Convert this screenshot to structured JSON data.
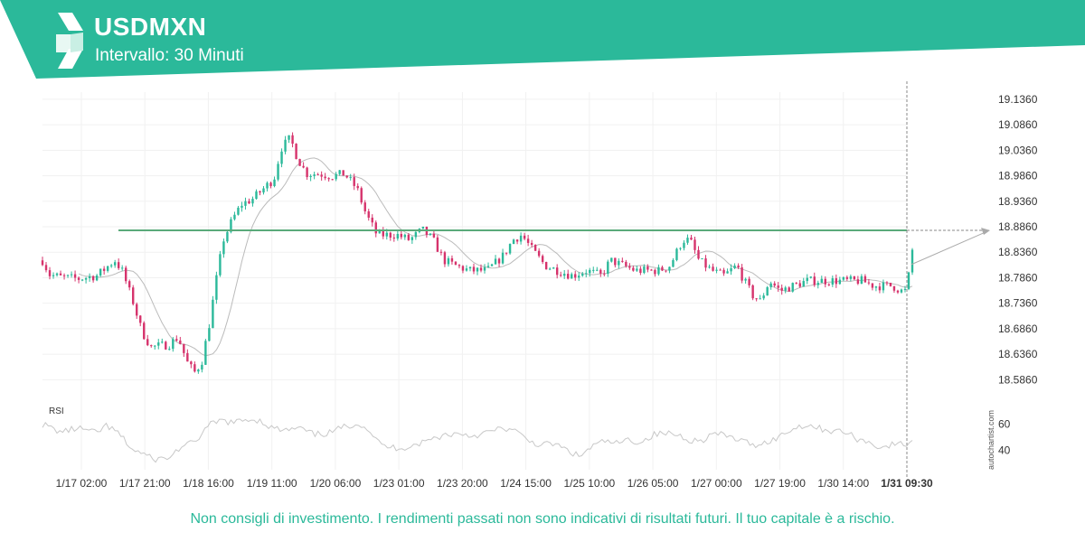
{
  "header": {
    "symbol": "USDMXN",
    "interval": "Intervallo: 30 Minuti",
    "color": "#2bb99a"
  },
  "footer": {
    "disclaimer": "Non consigli di investimento. I rendimenti passati non sono indicativi di risultati futuri. Il tuo capitale è a rischio."
  },
  "brand": "autochartist.com",
  "chart_data": {
    "type": "candlestick",
    "title": "USDMXN",
    "interval": "Intervallo: 30 Minuti",
    "y_ticks": [
      "19.1360",
      "19.0860",
      "19.0360",
      "18.9860",
      "18.9360",
      "18.8860",
      "18.8360",
      "18.7860",
      "18.7360",
      "18.6860",
      "18.6360",
      "18.5860"
    ],
    "ylim": [
      18.56,
      19.15
    ],
    "x_ticks": [
      "1/17 02:00",
      "1/17 21:00",
      "1/18 16:00",
      "1/19 11:00",
      "1/20 06:00",
      "1/23 01:00",
      "1/23 20:00",
      "1/24 15:00",
      "1/25 10:00",
      "1/26 05:00",
      "1/27 00:00",
      "1/27 19:00",
      "1/30 14:00",
      "1/31 09:30"
    ],
    "highlighted_x": "1/31 09:30",
    "resistance_level": 18.879,
    "colors": {
      "up": "#2bb99a",
      "down": "#d6336c",
      "resistance": "#5aaa7a",
      "ma": "#bbbbbb",
      "rsi": "#c8c8c8"
    },
    "price_path": [
      [
        0,
        18.82
      ],
      [
        8,
        18.792
      ],
      [
        20,
        18.787
      ],
      [
        40,
        18.784
      ],
      [
        60,
        18.79
      ],
      [
        80,
        18.82
      ],
      [
        88,
        18.8
      ],
      [
        100,
        18.74
      ],
      [
        110,
        18.68
      ],
      [
        120,
        18.65
      ],
      [
        140,
        18.655
      ],
      [
        150,
        18.67
      ],
      [
        160,
        18.62
      ],
      [
        168,
        18.6
      ],
      [
        176,
        18.62
      ],
      [
        184,
        18.69
      ],
      [
        192,
        18.78
      ],
      [
        200,
        18.86
      ],
      [
        210,
        18.9
      ],
      [
        220,
        18.93
      ],
      [
        232,
        18.94
      ],
      [
        244,
        18.96
      ],
      [
        256,
        18.98
      ],
      [
        264,
        19.04
      ],
      [
        274,
        19.06
      ],
      [
        282,
        19.02
      ],
      [
        292,
        18.99
      ],
      [
        306,
        18.99
      ],
      [
        320,
        18.985
      ],
      [
        334,
        18.99
      ],
      [
        348,
        18.96
      ],
      [
        358,
        18.91
      ],
      [
        370,
        18.87
      ],
      [
        380,
        18.87
      ],
      [
        392,
        18.87
      ],
      [
        406,
        18.86
      ],
      [
        420,
        18.88
      ],
      [
        432,
        18.86
      ],
      [
        444,
        18.82
      ],
      [
        456,
        18.81
      ],
      [
        472,
        18.8
      ],
      [
        492,
        18.8
      ],
      [
        510,
        18.83
      ],
      [
        520,
        18.86
      ],
      [
        530,
        18.87
      ],
      [
        542,
        18.84
      ],
      [
        556,
        18.81
      ],
      [
        570,
        18.8
      ],
      [
        586,
        18.79
      ],
      [
        602,
        18.8
      ],
      [
        618,
        18.79
      ],
      [
        628,
        18.82
      ],
      [
        642,
        18.81
      ],
      [
        656,
        18.8
      ],
      [
        670,
        18.8
      ],
      [
        682,
        18.8
      ],
      [
        694,
        18.81
      ],
      [
        708,
        18.86
      ],
      [
        716,
        18.86
      ],
      [
        726,
        18.82
      ],
      [
        740,
        18.8
      ],
      [
        754,
        18.79
      ],
      [
        768,
        18.81
      ],
      [
        776,
        18.78
      ],
      [
        786,
        18.75
      ],
      [
        794,
        18.74
      ],
      [
        804,
        18.78
      ],
      [
        816,
        18.76
      ],
      [
        830,
        18.77
      ],
      [
        846,
        18.78
      ],
      [
        860,
        18.78
      ],
      [
        878,
        18.78
      ],
      [
        892,
        18.78
      ],
      [
        906,
        18.78
      ],
      [
        920,
        18.77
      ],
      [
        940,
        18.77
      ],
      [
        950,
        18.76
      ],
      [
        956,
        18.76
      ],
      [
        960,
        18.82
      ],
      [
        962,
        18.84
      ]
    ],
    "rsi": {
      "label": "RSI",
      "ticks": [
        "60",
        "40"
      ],
      "ylim": [
        25,
        75
      ],
      "path": [
        [
          0,
          60
        ],
        [
          20,
          54
        ],
        [
          40,
          57
        ],
        [
          60,
          53
        ],
        [
          70,
          59
        ],
        [
          84,
          53
        ],
        [
          100,
          40
        ],
        [
          110,
          38
        ],
        [
          122,
          33
        ],
        [
          140,
          34
        ],
        [
          152,
          42
        ],
        [
          168,
          46
        ],
        [
          184,
          59
        ],
        [
          198,
          63
        ],
        [
          212,
          61
        ],
        [
          228,
          64
        ],
        [
          240,
          63
        ],
        [
          254,
          57
        ],
        [
          268,
          55
        ],
        [
          284,
          57
        ],
        [
          300,
          52
        ],
        [
          316,
          53
        ],
        [
          334,
          58
        ],
        [
          350,
          61
        ],
        [
          362,
          55
        ],
        [
          374,
          44
        ],
        [
          386,
          42
        ],
        [
          400,
          42
        ],
        [
          416,
          45
        ],
        [
          432,
          49
        ],
        [
          446,
          52
        ],
        [
          462,
          53
        ],
        [
          476,
          51
        ],
        [
          494,
          54
        ],
        [
          510,
          57
        ],
        [
          522,
          55
        ],
        [
          536,
          48
        ],
        [
          550,
          44
        ],
        [
          566,
          45
        ],
        [
          580,
          40
        ],
        [
          594,
          35
        ],
        [
          608,
          43
        ],
        [
          622,
          47
        ],
        [
          636,
          45
        ],
        [
          648,
          48
        ],
        [
          662,
          46
        ],
        [
          676,
          52
        ],
        [
          690,
          53
        ],
        [
          702,
          52
        ],
        [
          716,
          48
        ],
        [
          728,
          47
        ],
        [
          742,
          53
        ],
        [
          756,
          51
        ],
        [
          770,
          48
        ],
        [
          786,
          44
        ],
        [
          800,
          46
        ],
        [
          814,
          50
        ],
        [
          828,
          56
        ],
        [
          844,
          60
        ],
        [
          858,
          57
        ],
        [
          872,
          55
        ],
        [
          888,
          54
        ],
        [
          900,
          49
        ],
        [
          914,
          46
        ],
        [
          928,
          42
        ],
        [
          944,
          45
        ],
        [
          955,
          44
        ],
        [
          962,
          48
        ]
      ]
    }
  }
}
